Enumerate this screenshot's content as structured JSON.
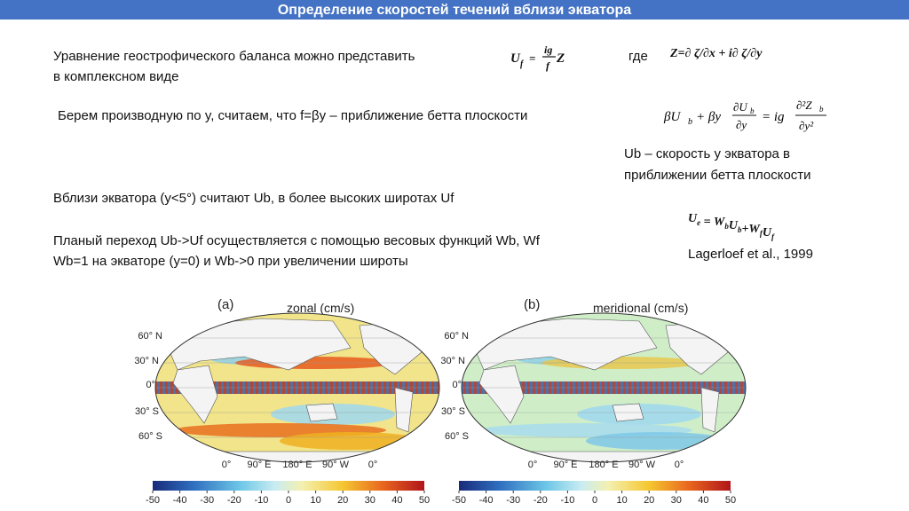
{
  "header": {
    "title": "Определение скоростей течений вблизи экватора"
  },
  "text": {
    "p1_line1": "Уравнение геострофического баланса можно представить",
    "p1_line2": "в комплексном виде",
    "where": "где",
    "p2": "Берем производную по y, считаем, что f=βy – приближение бетта плоскости",
    "ub_line1": "Ub – скорость у экватора в",
    "ub_line2": "приближении бетта плоскости",
    "p3": "Вблизи экватора (y<5°) считают Ub, в более высоких широтах Uf",
    "p4_line1": "Планый переход Ub->Uf осуществляется с помощью весовых функций Wb, Wf",
    "p4_line2": "Wb=1 на экваторе (y=0)  и Wb->0 при увеличении широты",
    "citation": "Lagerloef et al., 1999"
  },
  "formulas": {
    "uf": {
      "lhs": "U",
      "lhs_sub": "f",
      "eq": "=",
      "num": "ig",
      "den": "f",
      "rhs": "Z"
    },
    "z": "Z=∂ ζ/∂x  +  i∂ ζ/∂y",
    "beta": {
      "term1": "βU",
      "term1_sub": "b",
      "term2": "+ βy",
      "frac1_num": "∂U",
      "frac1_num_sub": "b",
      "frac1_den": "∂y",
      "eq": "= ig",
      "frac2_num": "∂²Z",
      "frac2_num_sub": "b",
      "frac2_den": "∂y²"
    },
    "ue": [
      {
        "t": "U",
        "s": "e"
      },
      {
        "t": " = "
      },
      {
        "t": "W",
        "s": "b"
      },
      {
        "t": "U",
        "s": "b"
      },
      {
        "t": "+W",
        "s": "f"
      },
      {
        "t": "U",
        "s": "f"
      }
    ]
  },
  "figures": [
    {
      "panel": "(a)",
      "title": "zonal (cm/s)",
      "lat_labels": [
        "60° N",
        "30° N",
        "0°",
        "30° S",
        "60° S"
      ],
      "lon_labels": [
        "0°",
        "90° E",
        "180° E",
        "90° W",
        "0°"
      ],
      "colorbar_ticks": [
        -50,
        -40,
        -30,
        -20,
        -10,
        0,
        10,
        20,
        30,
        40,
        50
      ]
    },
    {
      "panel": "(b)",
      "title": "meridional (cm/s)",
      "lat_labels": [
        "60° N",
        "30° N",
        "0°",
        "30° S",
        "60° S"
      ],
      "lon_labels": [
        "0°",
        "90° E",
        "180° E",
        "90° W",
        "0°"
      ],
      "colorbar_ticks": [
        -50,
        -40,
        -30,
        -20,
        -10,
        0,
        10,
        20,
        30,
        40,
        50
      ]
    }
  ]
}
